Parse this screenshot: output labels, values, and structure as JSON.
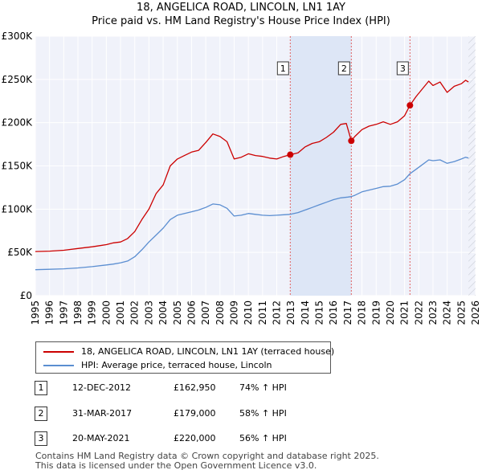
{
  "chart_data": {
    "type": "line",
    "title": "18, ANGELICA ROAD, LINCOLN, LN1 1AY",
    "subtitle": "Price paid vs. HM Land Registry's House Price Index (HPI)",
    "xlabel": "",
    "ylabel": "",
    "xlim": [
      1995,
      2026
    ],
    "ylim": [
      0,
      300000
    ],
    "x_ticks": [
      1995,
      1996,
      1997,
      1998,
      1999,
      2000,
      2001,
      2002,
      2003,
      2004,
      2005,
      2006,
      2007,
      2008,
      2009,
      2010,
      2011,
      2012,
      2013,
      2014,
      2015,
      2016,
      2017,
      2018,
      2019,
      2020,
      2021,
      2022,
      2023,
      2024,
      2025,
      2026
    ],
    "y_ticks": [
      {
        "value": 0,
        "label": "£0"
      },
      {
        "value": 50000,
        "label": "£50K"
      },
      {
        "value": 100000,
        "label": "£100K"
      },
      {
        "value": 150000,
        "label": "£150K"
      },
      {
        "value": 200000,
        "label": "£200K"
      },
      {
        "value": 250000,
        "label": "£250K"
      },
      {
        "value": 300000,
        "label": "£300K"
      }
    ],
    "grid": true,
    "series": [
      {
        "name": "18, ANGELICA ROAD, LINCOLN, LN1 1AY (terraced house)",
        "color": "#cc0000",
        "points": [
          [
            1995.0,
            51000
          ],
          [
            1996.0,
            51500
          ],
          [
            1997.0,
            52500
          ],
          [
            1998.0,
            54500
          ],
          [
            1999.0,
            56500
          ],
          [
            2000.0,
            59000
          ],
          [
            2000.5,
            61000
          ],
          [
            2001.0,
            62000
          ],
          [
            2001.5,
            66000
          ],
          [
            2002.0,
            74000
          ],
          [
            2002.5,
            88000
          ],
          [
            2003.0,
            100000
          ],
          [
            2003.5,
            118000
          ],
          [
            2004.0,
            128000
          ],
          [
            2004.5,
            150000
          ],
          [
            2005.0,
            158000
          ],
          [
            2005.5,
            162000
          ],
          [
            2006.0,
            166000
          ],
          [
            2006.5,
            168000
          ],
          [
            2007.0,
            177000
          ],
          [
            2007.5,
            187000
          ],
          [
            2008.0,
            184000
          ],
          [
            2008.5,
            178000
          ],
          [
            2009.0,
            158000
          ],
          [
            2009.5,
            160000
          ],
          [
            2010.0,
            164000
          ],
          [
            2010.5,
            162000
          ],
          [
            2011.0,
            161000
          ],
          [
            2011.5,
            159000
          ],
          [
            2012.0,
            158000
          ],
          [
            2012.5,
            161000
          ],
          [
            2012.95,
            162950
          ],
          [
            2013.5,
            165000
          ],
          [
            2014.0,
            172000
          ],
          [
            2014.5,
            176000
          ],
          [
            2015.0,
            178000
          ],
          [
            2015.5,
            183000
          ],
          [
            2016.0,
            189000
          ],
          [
            2016.5,
            198000
          ],
          [
            2016.9,
            199000
          ],
          [
            2017.25,
            179000
          ],
          [
            2017.5,
            184000
          ],
          [
            2018.0,
            192000
          ],
          [
            2018.5,
            196000
          ],
          [
            2019.0,
            198000
          ],
          [
            2019.5,
            201000
          ],
          [
            2020.0,
            198000
          ],
          [
            2020.5,
            201000
          ],
          [
            2021.0,
            208000
          ],
          [
            2021.38,
            220000
          ],
          [
            2021.8,
            230000
          ],
          [
            2022.3,
            240000
          ],
          [
            2022.7,
            248000
          ],
          [
            2023.0,
            243000
          ],
          [
            2023.5,
            247000
          ],
          [
            2024.0,
            235000
          ],
          [
            2024.5,
            242000
          ],
          [
            2025.0,
            245000
          ],
          [
            2025.3,
            249000
          ],
          [
            2025.5,
            247000
          ]
        ]
      },
      {
        "name": "HPI: Average price, terraced house, Lincoln",
        "color": "#5b8ed1",
        "points": [
          [
            1995.0,
            30000
          ],
          [
            1996.0,
            30500
          ],
          [
            1997.0,
            31000
          ],
          [
            1998.0,
            32000
          ],
          [
            1999.0,
            33500
          ],
          [
            2000.0,
            35500
          ],
          [
            2000.5,
            36500
          ],
          [
            2001.0,
            38000
          ],
          [
            2001.5,
            40000
          ],
          [
            2002.0,
            45000
          ],
          [
            2002.5,
            53000
          ],
          [
            2003.0,
            62000
          ],
          [
            2003.5,
            70000
          ],
          [
            2004.0,
            78000
          ],
          [
            2004.5,
            88000
          ],
          [
            2005.0,
            93000
          ],
          [
            2005.5,
            95000
          ],
          [
            2006.0,
            97000
          ],
          [
            2006.5,
            99000
          ],
          [
            2007.0,
            102000
          ],
          [
            2007.5,
            106000
          ],
          [
            2008.0,
            105000
          ],
          [
            2008.5,
            101000
          ],
          [
            2009.0,
            92000
          ],
          [
            2009.5,
            93000
          ],
          [
            2010.0,
            95000
          ],
          [
            2010.5,
            94000
          ],
          [
            2011.0,
            93000
          ],
          [
            2011.5,
            92500
          ],
          [
            2012.0,
            93000
          ],
          [
            2012.5,
            93500
          ],
          [
            2012.95,
            94000
          ],
          [
            2013.5,
            96000
          ],
          [
            2014.0,
            99000
          ],
          [
            2014.5,
            102000
          ],
          [
            2015.0,
            105000
          ],
          [
            2015.5,
            108000
          ],
          [
            2016.0,
            111000
          ],
          [
            2016.5,
            113000
          ],
          [
            2017.0,
            114000
          ],
          [
            2017.25,
            114500
          ],
          [
            2017.5,
            116000
          ],
          [
            2018.0,
            120000
          ],
          [
            2018.5,
            122000
          ],
          [
            2019.0,
            124000
          ],
          [
            2019.5,
            126000
          ],
          [
            2020.0,
            126500
          ],
          [
            2020.5,
            129000
          ],
          [
            2021.0,
            134000
          ],
          [
            2021.38,
            141000
          ],
          [
            2021.8,
            146000
          ],
          [
            2022.3,
            152000
          ],
          [
            2022.7,
            157000
          ],
          [
            2023.0,
            156000
          ],
          [
            2023.5,
            157000
          ],
          [
            2024.0,
            153000
          ],
          [
            2024.5,
            155000
          ],
          [
            2025.0,
            158000
          ],
          [
            2025.3,
            160000
          ],
          [
            2025.5,
            159000
          ]
        ]
      }
    ],
    "transactions": [
      {
        "label": "1",
        "x": 2012.95,
        "y": 162950
      },
      {
        "label": "2",
        "x": 2017.25,
        "y": 179000
      },
      {
        "label": "3",
        "x": 2021.38,
        "y": 220000
      }
    ],
    "shaded_ranges": [
      [
        2012.95,
        2017.25
      ]
    ],
    "future_range_start": 2025.5
  },
  "legend": [
    {
      "label": "18, ANGELICA ROAD, LINCOLN, LN1 1AY (terraced house)",
      "color": "#cc0000"
    },
    {
      "label": "HPI: Average price, terraced house, Lincoln",
      "color": "#5b8ed1"
    }
  ],
  "transactions": [
    {
      "num": "1",
      "date": "12-DEC-2012",
      "price": "£162,950",
      "hpi": "74% ↑ HPI"
    },
    {
      "num": "2",
      "date": "31-MAR-2017",
      "price": "£179,000",
      "hpi": "58% ↑ HPI"
    },
    {
      "num": "3",
      "date": "20-MAY-2021",
      "price": "£220,000",
      "hpi": "56% ↑ HPI"
    }
  ],
  "footer": {
    "line1": "Contains HM Land Registry data © Crown copyright and database right 2025.",
    "line2": "This data is licensed under the Open Government Licence v3.0."
  }
}
